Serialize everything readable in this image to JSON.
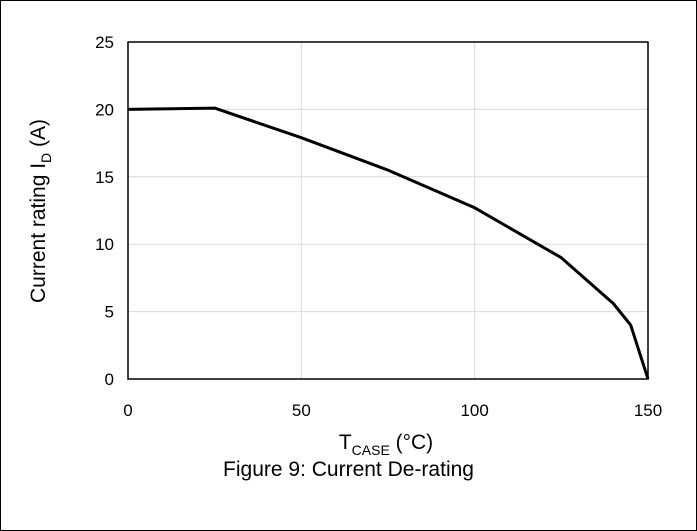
{
  "chart_data": {
    "type": "line",
    "xlabel": {
      "main": "T",
      "sub": "CASE",
      "unit": " (°C)"
    },
    "ylabel": {
      "main": "Current rating I",
      "sub": "D",
      "unit": " (A)"
    },
    "xlim": [
      0,
      150
    ],
    "ylim": [
      0,
      25
    ],
    "x_ticks": [
      "0",
      "50",
      "100",
      "150"
    ],
    "y_ticks": [
      "0",
      "5",
      "10",
      "15",
      "20",
      "25"
    ],
    "grid": true,
    "series": [
      {
        "x": [
          0,
          25,
          50,
          75,
          100,
          125,
          140,
          145,
          150
        ],
        "y": [
          20,
          20.1,
          17.9,
          15.5,
          12.7,
          9.0,
          5.6,
          4.0,
          0
        ],
        "color": "#000000"
      }
    ]
  },
  "caption": "Figure 9: Current De-rating"
}
